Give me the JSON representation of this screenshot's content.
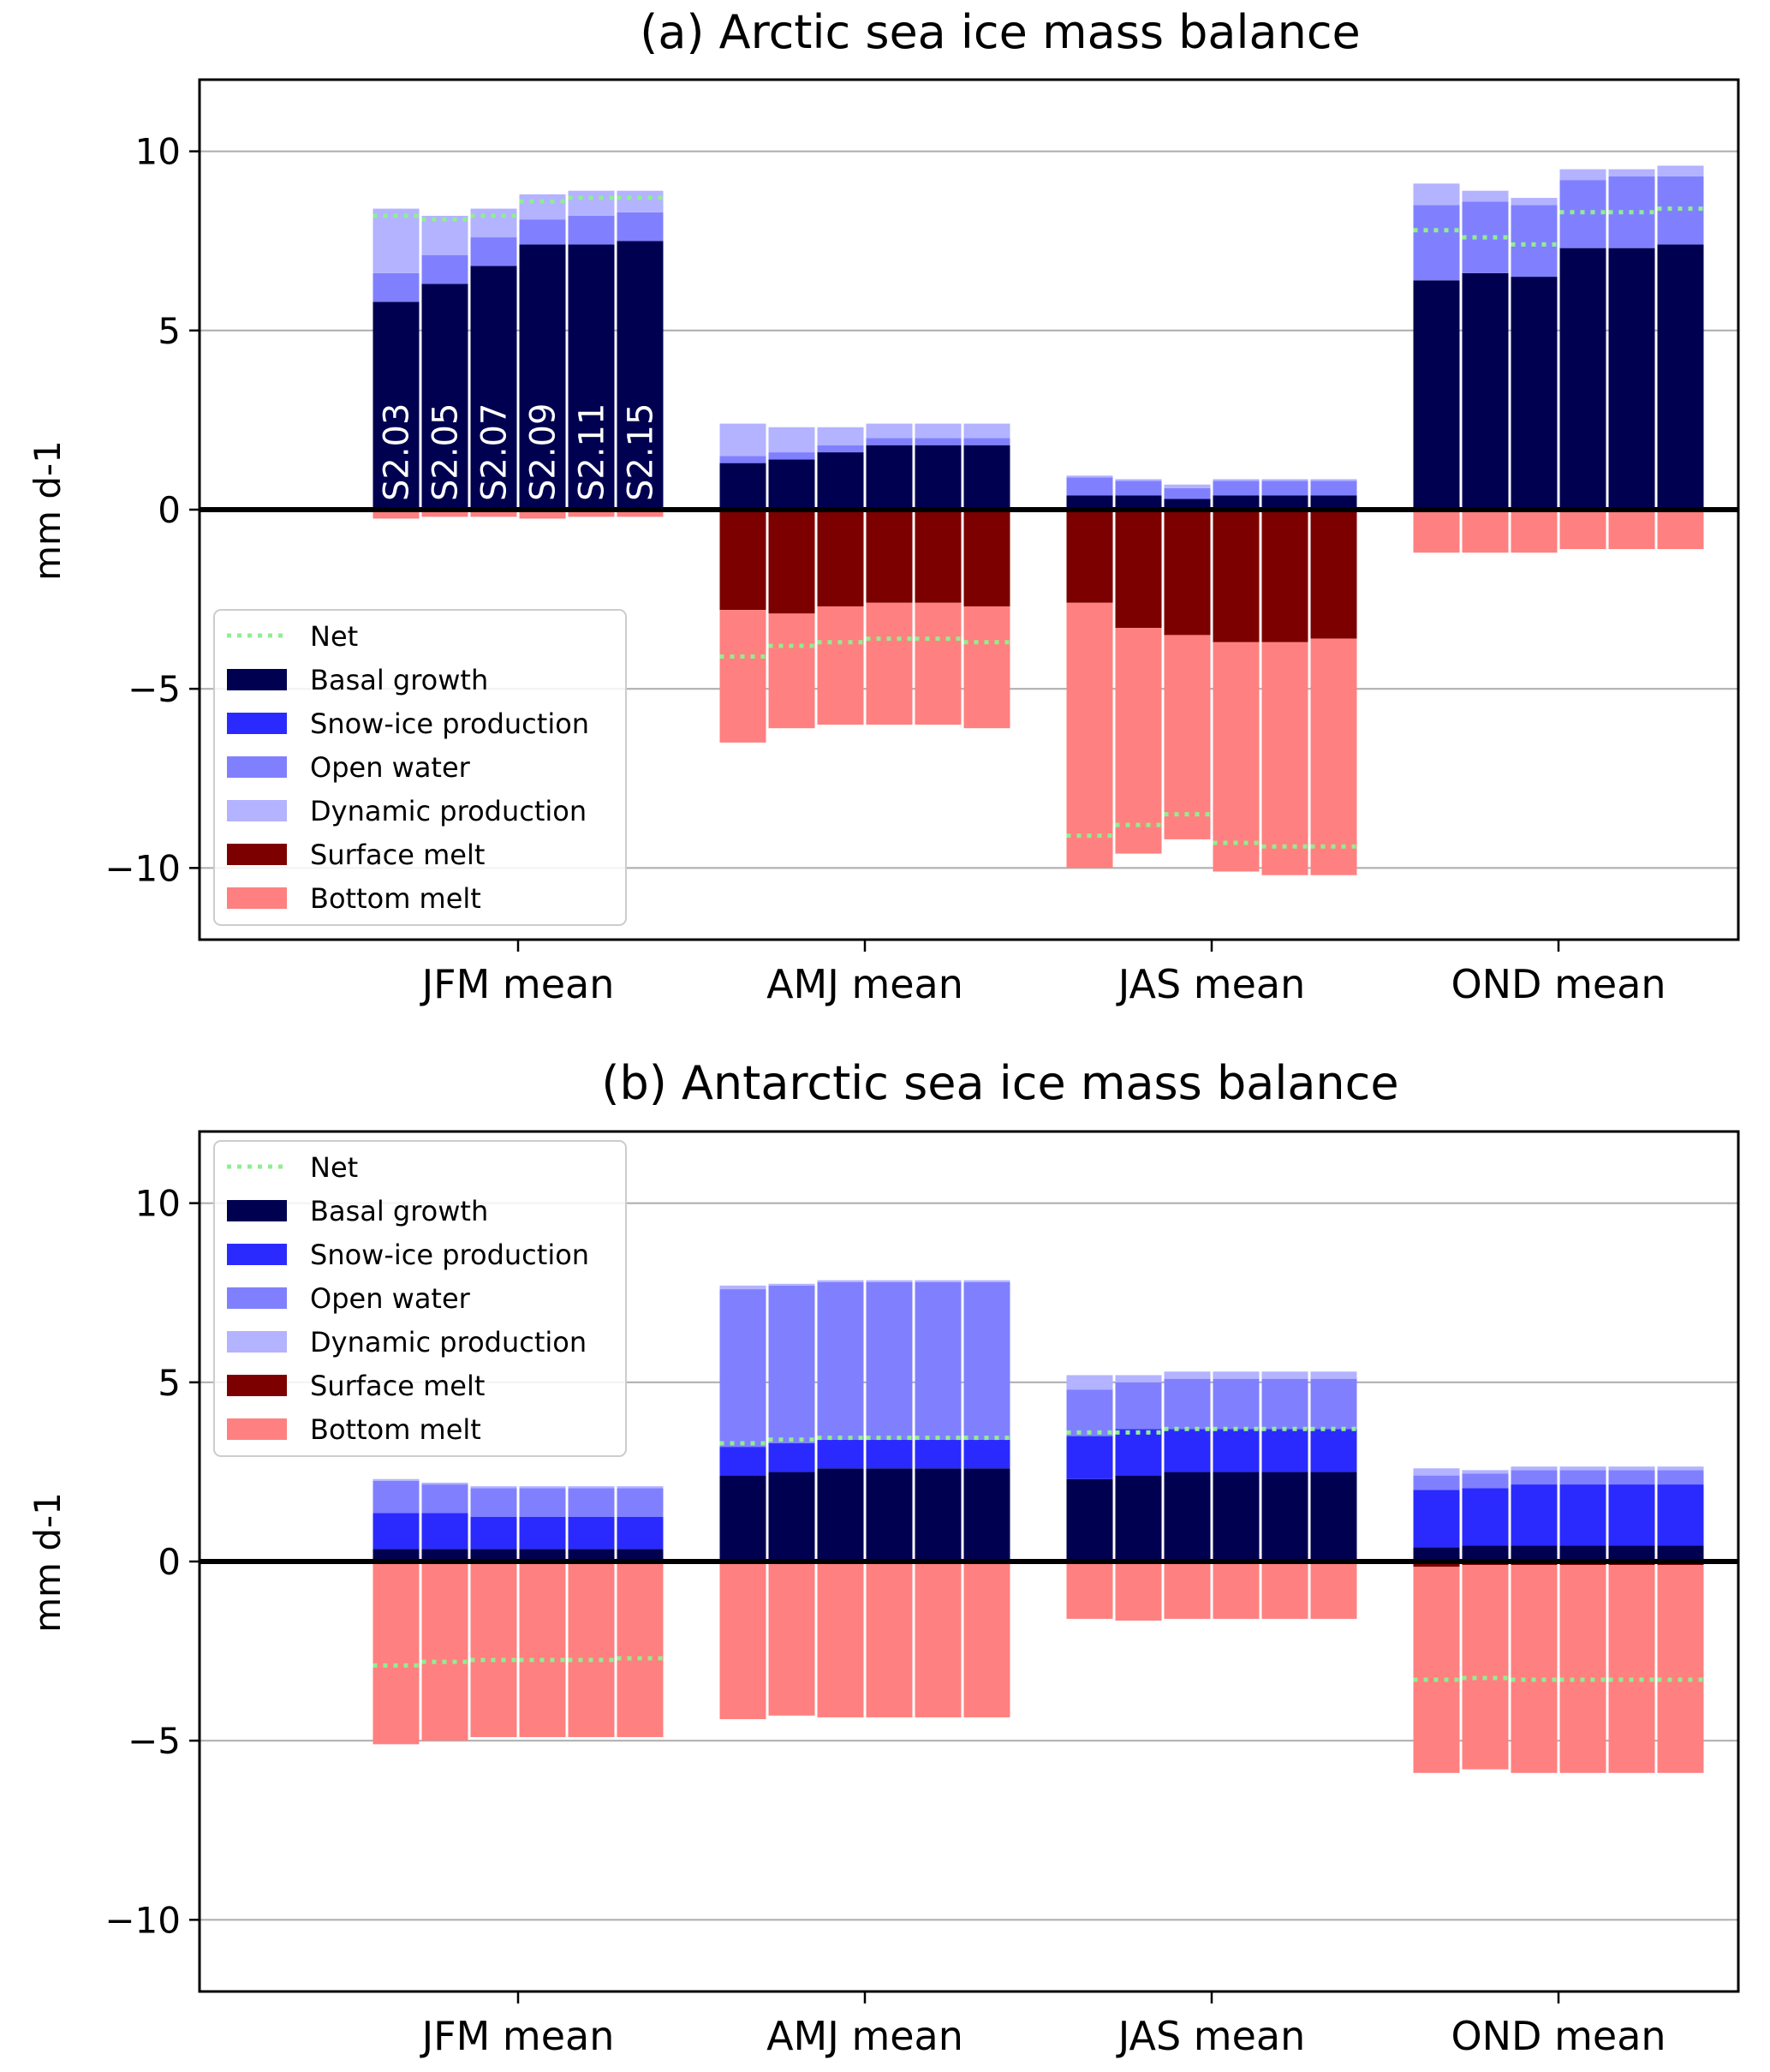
{
  "chart_data": [
    {
      "type": "bar",
      "title": "(a) Arctic sea ice mass balance",
      "xlabel": "",
      "ylabel": "mm d-1",
      "ylim": [
        -12,
        12
      ],
      "yticks": [
        10,
        5,
        0,
        -5,
        -10
      ],
      "ytick_labels": [
        "10",
        "5",
        "0",
        "−5",
        "−10"
      ],
      "grid": true,
      "legend_position": "lower-left",
      "categories": [
        "JFM mean",
        "AMJ mean",
        "JAS mean",
        "OND mean"
      ],
      "runs": [
        "S2.03",
        "S2.05",
        "S2.07",
        "S2.09",
        "S2.11",
        "S2.15"
      ],
      "show_run_labels": true,
      "series": [
        {
          "name": "Basal growth",
          "color": "#000050",
          "values": [
            [
              5.8,
              6.3,
              6.8,
              7.4,
              7.4,
              7.5
            ],
            [
              1.3,
              1.4,
              1.6,
              1.8,
              1.8,
              1.8
            ],
            [
              0.4,
              0.4,
              0.3,
              0.4,
              0.4,
              0.4
            ],
            [
              6.4,
              6.6,
              6.5,
              7.3,
              7.3,
              7.4
            ]
          ]
        },
        {
          "name": "Snow-ice production",
          "color": "#2a2aff",
          "values": [
            [
              0,
              0,
              0,
              0,
              0,
              0
            ],
            [
              0,
              0,
              0,
              0,
              0,
              0
            ],
            [
              0,
              0,
              0,
              0,
              0,
              0
            ],
            [
              0,
              0,
              0,
              0,
              0,
              0
            ]
          ]
        },
        {
          "name": "Open water",
          "color": "#8080ff",
          "values": [
            [
              0.8,
              0.8,
              0.8,
              0.7,
              0.8,
              0.8
            ],
            [
              0.2,
              0.2,
              0.2,
              0.2,
              0.2,
              0.2
            ],
            [
              0.5,
              0.4,
              0.3,
              0.4,
              0.4,
              0.4
            ],
            [
              2.1,
              2.0,
              2.0,
              1.9,
              2.0,
              1.9
            ]
          ]
        },
        {
          "name": "Dynamic production",
          "color": "#b3b3ff",
          "values": [
            [
              1.8,
              1.1,
              0.8,
              0.7,
              0.7,
              0.6
            ],
            [
              0.9,
              0.7,
              0.5,
              0.4,
              0.4,
              0.4
            ],
            [
              0.05,
              0.05,
              0.1,
              0.05,
              0.05,
              0.05
            ],
            [
              0.6,
              0.3,
              0.2,
              0.3,
              0.2,
              0.3
            ]
          ]
        },
        {
          "name": "Surface melt",
          "color": "#7d0000",
          "values": [
            [
              -0.05,
              -0.05,
              -0.05,
              -0.05,
              -0.05,
              -0.05
            ],
            [
              -2.8,
              -2.9,
              -2.7,
              -2.6,
              -2.6,
              -2.7
            ],
            [
              -2.6,
              -3.3,
              -3.5,
              -3.7,
              -3.7,
              -3.6
            ],
            [
              0,
              0,
              0,
              0,
              0,
              0
            ]
          ]
        },
        {
          "name": "Bottom melt",
          "color": "#ff8080",
          "values": [
            [
              -0.2,
              -0.15,
              -0.15,
              -0.2,
              -0.15,
              -0.15
            ],
            [
              -3.7,
              -3.2,
              -3.3,
              -3.4,
              -3.4,
              -3.4
            ],
            [
              -7.4,
              -6.3,
              -5.7,
              -6.4,
              -6.5,
              -6.6
            ],
            [
              -1.2,
              -1.2,
              -1.2,
              -1.1,
              -1.1,
              -1.1
            ]
          ]
        }
      ],
      "net": {
        "name": "Net",
        "color": "#90ee90",
        "values": [
          [
            8.2,
            8.1,
            8.2,
            8.6,
            8.7,
            8.7
          ],
          [
            -4.1,
            -3.8,
            -3.7,
            -3.6,
            -3.6,
            -3.7
          ],
          [
            -9.1,
            -8.8,
            -8.5,
            -9.3,
            -9.4,
            -9.4
          ],
          [
            7.8,
            7.6,
            7.4,
            8.3,
            8.3,
            8.4
          ]
        ]
      }
    },
    {
      "type": "bar",
      "title": "(b) Antarctic sea ice mass balance",
      "xlabel": "",
      "ylabel": "mm d-1",
      "ylim": [
        -12,
        12
      ],
      "yticks": [
        10,
        5,
        0,
        -5,
        -10
      ],
      "ytick_labels": [
        "10",
        "5",
        "0",
        "−5",
        "−10"
      ],
      "grid": true,
      "legend_position": "upper-left",
      "categories": [
        "JFM mean",
        "AMJ mean",
        "JAS mean",
        "OND mean"
      ],
      "runs": [
        "S2.03",
        "S2.05",
        "S2.07",
        "S2.09",
        "S2.11",
        "S2.15"
      ],
      "show_run_labels": false,
      "series": [
        {
          "name": "Basal growth",
          "color": "#000050",
          "values": [
            [
              0.35,
              0.35,
              0.35,
              0.35,
              0.35,
              0.35
            ],
            [
              2.4,
              2.5,
              2.6,
              2.6,
              2.6,
              2.6
            ],
            [
              2.3,
              2.4,
              2.5,
              2.5,
              2.5,
              2.5
            ],
            [
              0.4,
              0.45,
              0.45,
              0.45,
              0.45,
              0.45
            ]
          ]
        },
        {
          "name": "Snow-ice production",
          "color": "#2a2aff",
          "values": [
            [
              1.0,
              1.0,
              0.9,
              0.9,
              0.9,
              0.9
            ],
            [
              0.8,
              0.8,
              0.8,
              0.8,
              0.8,
              0.8
            ],
            [
              1.2,
              1.3,
              1.2,
              1.2,
              1.2,
              1.2
            ],
            [
              1.6,
              1.6,
              1.7,
              1.7,
              1.7,
              1.7
            ]
          ]
        },
        {
          "name": "Open water",
          "color": "#8080ff",
          "values": [
            [
              0.9,
              0.8,
              0.8,
              0.8,
              0.8,
              0.8
            ],
            [
              4.4,
              4.4,
              4.4,
              4.4,
              4.4,
              4.4
            ],
            [
              1.3,
              1.3,
              1.4,
              1.4,
              1.4,
              1.4
            ],
            [
              0.4,
              0.4,
              0.4,
              0.4,
              0.4,
              0.4
            ]
          ]
        },
        {
          "name": "Dynamic production",
          "color": "#b3b3ff",
          "values": [
            [
              0.05,
              0.05,
              0.05,
              0.05,
              0.05,
              0.05
            ],
            [
              0.1,
              0.05,
              0.05,
              0.05,
              0.05,
              0.05
            ],
            [
              0.4,
              0.2,
              0.2,
              0.2,
              0.2,
              0.2
            ],
            [
              0.2,
              0.1,
              0.1,
              0.1,
              0.1,
              0.1
            ]
          ]
        },
        {
          "name": "Surface melt",
          "color": "#7d0000",
          "values": [
            [
              0,
              0,
              0,
              0,
              0,
              0
            ],
            [
              0,
              0,
              0,
              0,
              0,
              0
            ],
            [
              0,
              0,
              0,
              0,
              0,
              0
            ],
            [
              -0.15,
              -0.1,
              -0.1,
              -0.1,
              -0.1,
              -0.1
            ]
          ]
        },
        {
          "name": "Bottom melt",
          "color": "#ff8080",
          "values": [
            [
              -5.1,
              -5.0,
              -4.9,
              -4.9,
              -4.9,
              -4.9
            ],
            [
              -4.4,
              -4.3,
              -4.35,
              -4.35,
              -4.35,
              -4.35
            ],
            [
              -1.6,
              -1.65,
              -1.6,
              -1.6,
              -1.6,
              -1.6
            ],
            [
              -5.75,
              -5.7,
              -5.8,
              -5.8,
              -5.8,
              -5.8
            ]
          ]
        }
      ],
      "net": {
        "name": "Net",
        "color": "#90ee90",
        "values": [
          [
            -2.9,
            -2.8,
            -2.75,
            -2.75,
            -2.75,
            -2.7
          ],
          [
            3.3,
            3.4,
            3.45,
            3.45,
            3.45,
            3.45
          ],
          [
            3.6,
            3.6,
            3.7,
            3.7,
            3.7,
            3.7
          ],
          [
            -3.3,
            -3.25,
            -3.3,
            -3.3,
            -3.3,
            -3.3
          ]
        ]
      }
    }
  ]
}
